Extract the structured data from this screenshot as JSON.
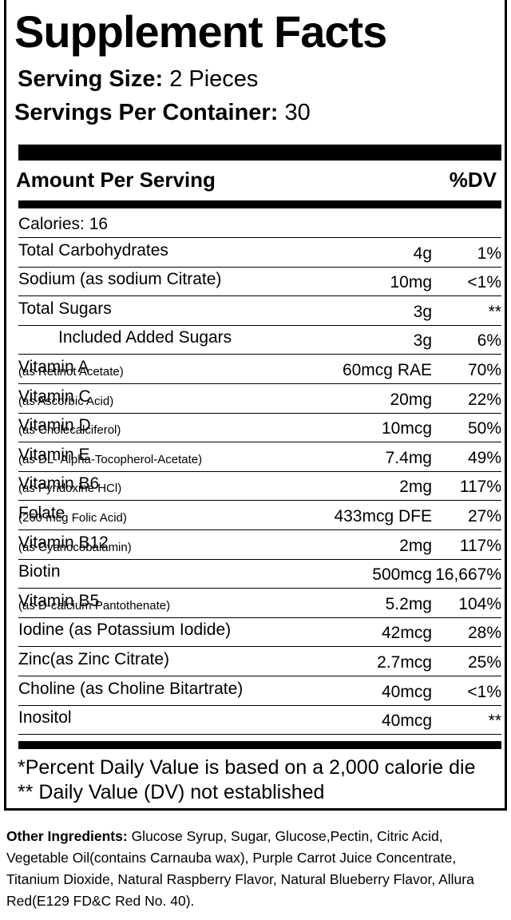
{
  "title": "Supplement Facts",
  "serving_size": {
    "label": "Serving Size:",
    "value": "2 Pieces"
  },
  "servings_per_container": {
    "label": "Servings Per Container:",
    "value": "30"
  },
  "header": {
    "amount": "Amount Per Serving",
    "dv": "%DV"
  },
  "calories": "Calories: 16",
  "rows": [
    {
      "name": "Total Carbohydrates",
      "amount": "4g",
      "dv": "1%"
    },
    {
      "name": "Sodium (as sodium Citrate)",
      "amount": "10mg",
      "dv": "<1%"
    },
    {
      "name": "Total Sugars",
      "amount": "3g",
      "dv": "**"
    },
    {
      "name": "Included Added Sugars",
      "amount": "3g",
      "dv": "6%",
      "indent": true
    },
    {
      "name": "Vitamin A",
      "note": "(as Retinot Acetate)",
      "amount": "60mcg RAE",
      "dv": "70%"
    },
    {
      "name": "Vitamin C",
      "note": "(as Ascorbic Acid)",
      "amount": "20mg",
      "dv": "22%"
    },
    {
      "name": "Vitamin D",
      "note": "(as Cholecalciferol)",
      "amount": "10mcg",
      "dv": "50%"
    },
    {
      "name": "Vitamin E",
      "note": "(as DL- Alpha-Tocopherol-Acetate)",
      "amount": "7.4mg",
      "dv": "49%"
    },
    {
      "name": "Vitamin B6",
      "note": "(as Pyridoxine HCl)",
      "amount": "2mg",
      "dv": "117%"
    },
    {
      "name": "Folate",
      "note": "(260 mcg Folic Acid)",
      "amount": "433mcg DFE",
      "dv": "27%"
    },
    {
      "name": "Vitamin B12",
      "note": "(as Cyanocobalamin)",
      "amount": "2mg",
      "dv": "117%"
    },
    {
      "name": "Biotin",
      "amount": "500mcg",
      "dv": "16,667%"
    },
    {
      "name": "Vitamin B5",
      "note": "(as D-calcium Pantothenate)",
      "amount": "5.2mg",
      "dv": "104%"
    },
    {
      "name": "Iodine (as Potassium Iodide)",
      "amount": "42mcg",
      "dv": "28%"
    },
    {
      "name": "Zinc(as Zinc Citrate)",
      "amount": "2.7mcg",
      "dv": "25%"
    },
    {
      "name": "Choline (as Choline Bitartrate)",
      "amount": "40mcg",
      "dv": "<1%"
    },
    {
      "name": "Inositol",
      "amount": "40mcg",
      "dv": "**"
    }
  ],
  "footnotes": [
    "*Percent Daily Value is based on a 2,000 calorie die",
    "** Daily Value (DV) not established"
  ],
  "other_ingredients": {
    "label": "Other Ingredients:",
    "text": "Glucose Syrup, Sugar, Glucose,Pectin, Citric Acid,  Vegetable Oil(contains Carnauba wax), Purple Carrot Juice Concentrate, Titanium Dioxide, Natural Raspberry Flavor, Natural Blueberry Flavor, Allura Red(E129 FD&C Red No. 40)."
  }
}
